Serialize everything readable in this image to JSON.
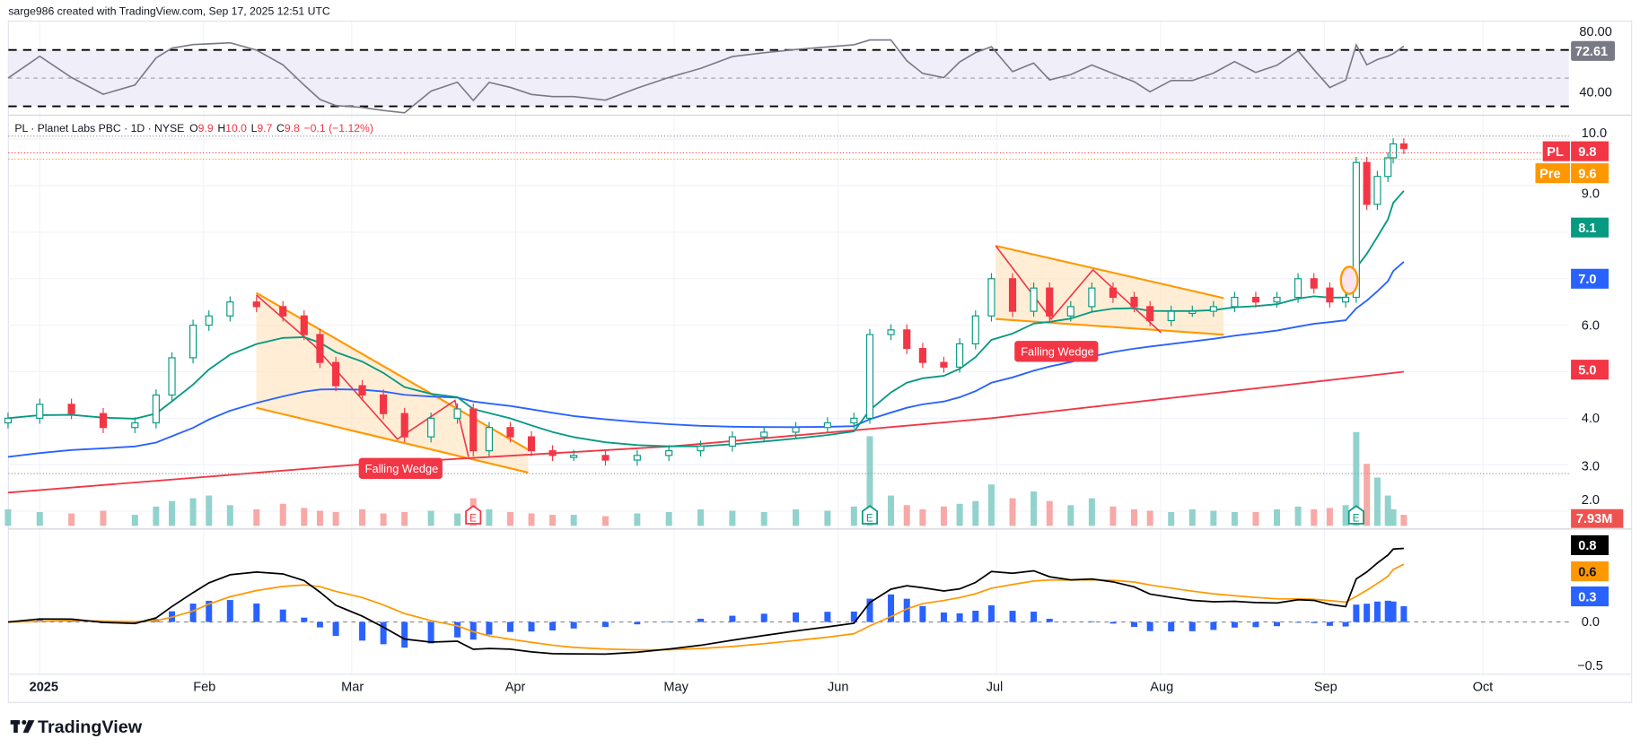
{
  "header": {
    "caption": "sarge986 created with TradingView.com, Sep 17, 2025 12:51 UTC"
  },
  "legend": {
    "symbol": "PL · Planet Labs PBC · 1D · NYSE",
    "open_label": "O",
    "open": "9.9",
    "high_label": "H",
    "high": "10.0",
    "low_label": "L",
    "low": "9.7",
    "close_label": "C",
    "close": "9.8",
    "change": "−0.1 (−1.12%)"
  },
  "rsi": {
    "axis_labels": [
      "80.00",
      "40.00"
    ],
    "current": "72.61",
    "upper": 70,
    "mid": 50,
    "lower": 30
  },
  "price_axis": {
    "labels": [
      "10.0",
      "9.0",
      "6.0",
      "4.0",
      "3.0",
      "2.0"
    ]
  },
  "badges": {
    "pl_symbol": "PL",
    "pl_value": "9.8",
    "pre_label": "Pre",
    "pre_value": "9.6",
    "ema_value": "8.1",
    "sma50_value": "7.0",
    "sma200_value": "5.0",
    "volume": "7.93M",
    "macd": "0.8",
    "signal": "0.6",
    "hist": "0.3"
  },
  "macd_axis": {
    "labels": [
      "0.0",
      "−0.5"
    ]
  },
  "annotations": {
    "wedge1": "Falling Wedge",
    "wedge2": "Falling Wedge",
    "earnings": "E"
  },
  "time_axis": [
    "2025",
    "Feb",
    "Mar",
    "Apr",
    "May",
    "Jun",
    "Jul",
    "Aug",
    "Sep",
    "Oct"
  ],
  "logo": {
    "text": "TradingView"
  },
  "colors": {
    "up": "#089981",
    "down": "#f23645",
    "ema": "#089981",
    "sma50": "#2962ff",
    "sma200": "#f23645",
    "rsi": "#787b86",
    "orange": "#ff9800"
  },
  "chart_data": {
    "type": "candlestick",
    "title": "PL · Planet Labs PBC · 1D · NYSE",
    "x_unit": "days since Jan 1 2025",
    "candles": [
      [
        -6,
        4.0
      ],
      [
        0,
        4.3
      ],
      [
        6,
        4.1
      ],
      [
        12,
        3.8
      ],
      [
        18,
        3.9
      ],
      [
        22,
        4.5
      ],
      [
        25,
        5.3
      ],
      [
        29,
        6.0
      ],
      [
        32,
        6.2
      ],
      [
        36,
        6.5
      ],
      [
        41,
        6.4
      ],
      [
        46,
        6.2
      ],
      [
        50,
        5.8
      ],
      [
        53,
        5.2
      ],
      [
        56,
        4.7
      ],
      [
        61,
        4.5
      ],
      [
        65,
        4.1
      ],
      [
        69,
        3.6
      ],
      [
        74,
        4.0
      ],
      [
        79,
        4.2
      ],
      [
        82,
        3.3
      ],
      [
        85,
        3.8
      ],
      [
        89,
        3.6
      ],
      [
        93,
        3.3
      ],
      [
        97,
        3.2
      ],
      [
        101,
        3.2
      ],
      [
        107,
        3.1
      ],
      [
        113,
        3.2
      ],
      [
        119,
        3.3
      ],
      [
        125,
        3.4
      ],
      [
        131,
        3.6
      ],
      [
        137,
        3.7
      ],
      [
        143,
        3.8
      ],
      [
        149,
        3.9
      ],
      [
        154,
        4.0
      ],
      [
        157,
        5.8
      ],
      [
        161,
        5.9
      ],
      [
        164,
        5.5
      ],
      [
        167,
        5.2
      ],
      [
        171,
        5.1
      ],
      [
        174,
        5.6
      ],
      [
        177,
        6.2
      ],
      [
        180,
        7.0
      ],
      [
        184,
        6.3
      ],
      [
        188,
        6.8
      ],
      [
        191,
        6.2
      ],
      [
        195,
        6.4
      ],
      [
        199,
        6.8
      ],
      [
        203,
        6.6
      ],
      [
        207,
        6.4
      ],
      [
        210,
        6.1
      ],
      [
        214,
        6.3
      ],
      [
        218,
        6.3
      ],
      [
        222,
        6.4
      ],
      [
        226,
        6.6
      ],
      [
        230,
        6.5
      ],
      [
        234,
        6.6
      ],
      [
        238,
        7.0
      ],
      [
        241,
        6.8
      ],
      [
        244,
        6.5
      ],
      [
        247,
        6.6
      ],
      [
        249,
        9.5
      ],
      [
        251,
        8.6
      ],
      [
        253,
        9.2
      ],
      [
        255,
        9.6
      ],
      [
        256,
        9.9
      ],
      [
        258,
        9.8
      ]
    ],
    "volumes_m": [
      12,
      10,
      9,
      11,
      8,
      14,
      18,
      20,
      22,
      15,
      12,
      16,
      13,
      11,
      10,
      12,
      9,
      10,
      11,
      9,
      20,
      12,
      10,
      9,
      8,
      8,
      7,
      9,
      10,
      12,
      11,
      10,
      12,
      11,
      14,
      65,
      22,
      15,
      12,
      14,
      16,
      18,
      30,
      20,
      25,
      18,
      15,
      20,
      14,
      12,
      11,
      10,
      12,
      11,
      10,
      10,
      12,
      14,
      12,
      13,
      15,
      68,
      45,
      35,
      22,
      12,
      8
    ],
    "sma200": [
      [
        -6,
        2.4
      ],
      [
        60,
        3.0
      ],
      [
        120,
        3.4
      ],
      [
        180,
        4.0
      ],
      [
        258,
        5.0
      ]
    ],
    "ylim": [
      2.0,
      10.5
    ],
    "earnings_days": [
      82,
      157,
      249
    ],
    "rsi_ylim": [
      20,
      85
    ],
    "macd_ylim": [
      -0.6,
      0.9
    ]
  }
}
